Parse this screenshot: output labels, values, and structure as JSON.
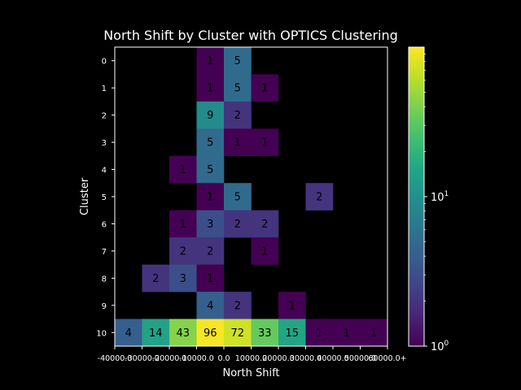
{
  "chart_data": {
    "type": "heatmap",
    "title": "North Shift by Cluster with OPTICS Clustering",
    "xlabel": "North Shift",
    "ylabel": "Cluster",
    "x_tick_labels": [
      "-40000.0",
      "-30000.0",
      "-20000.0",
      "-10000.0",
      "0.0",
      "10000.0",
      "20000.0",
      "30000.0",
      "40000.0",
      "50000.0",
      "60000.0+"
    ],
    "y_tick_labels": [
      "0",
      "1",
      "2",
      "3",
      "4",
      "5",
      "6",
      "7",
      "8",
      "9",
      "10"
    ],
    "values": [
      [
        0,
        0,
        0,
        1,
        5,
        0,
        0,
        0,
        0,
        0
      ],
      [
        0,
        0,
        0,
        1,
        5,
        1,
        0,
        0,
        0,
        0
      ],
      [
        0,
        0,
        0,
        9,
        2,
        0,
        0,
        0,
        0,
        0
      ],
      [
        0,
        0,
        0,
        5,
        1,
        1,
        0,
        0,
        0,
        0
      ],
      [
        0,
        0,
        1,
        5,
        0,
        0,
        0,
        0,
        0,
        0
      ],
      [
        0,
        0,
        0,
        1,
        5,
        0,
        0,
        2,
        0,
        0
      ],
      [
        0,
        0,
        1,
        3,
        2,
        2,
        0,
        0,
        0,
        0
      ],
      [
        0,
        0,
        2,
        2,
        0,
        1,
        0,
        0,
        0,
        0
      ],
      [
        0,
        2,
        3,
        1,
        0,
        0,
        0,
        0,
        0,
        0
      ],
      [
        0,
        0,
        0,
        4,
        2,
        0,
        1,
        0,
        0,
        0
      ],
      [
        4,
        14,
        43,
        96,
        72,
        33,
        15,
        1,
        1,
        1
      ]
    ],
    "colorbar": {
      "scale": "log",
      "range": [
        1,
        100
      ],
      "colormap": "viridis",
      "tick_labels": [
        "10^0",
        "10^1"
      ]
    },
    "colors": {
      "background": "#000000",
      "foreground": "#ffffff",
      "cell_text": "#000000"
    }
  }
}
